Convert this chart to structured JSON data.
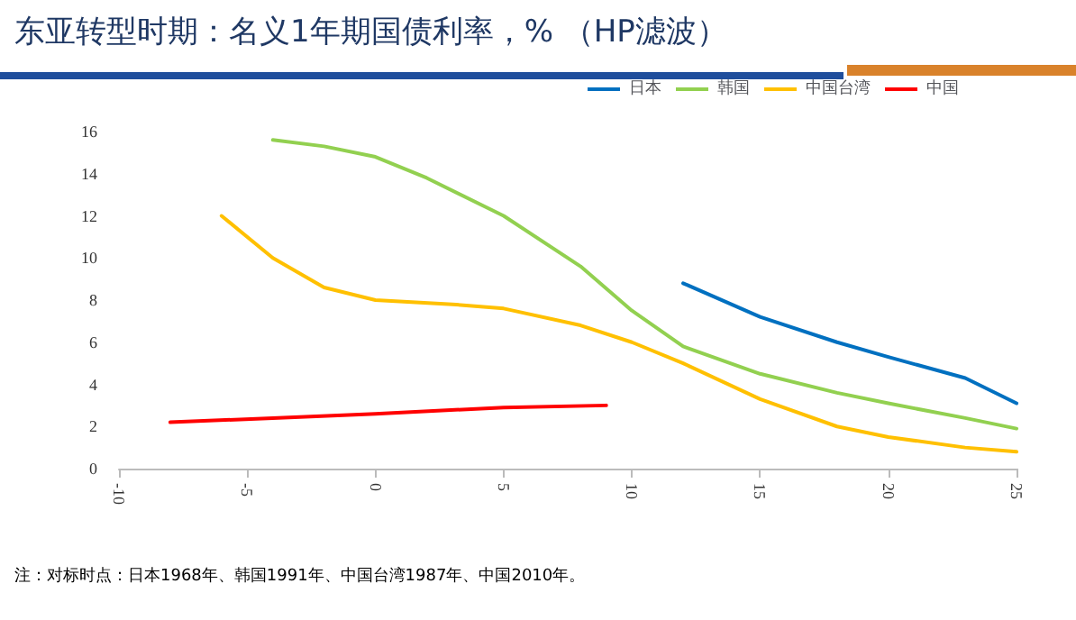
{
  "chart_data": {
    "type": "line",
    "title": "东亚转型时期：名义1年期国债利率，% （HP滤波）",
    "xlim": [
      -10,
      25
    ],
    "xticks": [
      -10,
      -5,
      0,
      5,
      10,
      15,
      20,
      25
    ],
    "ylim": [
      0,
      16
    ],
    "yticks": [
      0,
      2,
      4,
      6,
      8,
      10,
      12,
      14,
      16
    ],
    "grid": false,
    "legend": "top",
    "marker": "none",
    "line_style": "solid",
    "annotations": [
      "注：对标时点：日本1968年、韩国1991年、中国台湾1987年、中国2010年。"
    ],
    "series": [
      {
        "name": "日本",
        "color": "#0070c0",
        "x": [
          12,
          15,
          18,
          20,
          23,
          25
        ],
        "values": [
          8.8,
          7.2,
          6.0,
          5.3,
          4.3,
          3.1
        ]
      },
      {
        "name": "韩国",
        "color": "#92d050",
        "x": [
          -4,
          -2,
          0,
          2,
          5,
          8,
          10,
          12,
          15,
          18,
          20,
          23,
          25
        ],
        "values": [
          15.6,
          15.3,
          14.8,
          13.8,
          12.0,
          9.6,
          7.5,
          5.8,
          4.5,
          3.6,
          3.1,
          2.4,
          1.9
        ]
      },
      {
        "name": "中国台湾",
        "color": "#ffc000",
        "x": [
          -6,
          -4,
          -2,
          0,
          3,
          5,
          8,
          10,
          12,
          15,
          18,
          20,
          23,
          25
        ],
        "values": [
          12,
          10,
          8.6,
          8,
          7.8,
          7.6,
          6.8,
          6.0,
          5.0,
          3.3,
          2.0,
          1.5,
          1.0,
          0.8
        ]
      },
      {
        "name": "中国",
        "color": "#ff0000",
        "x": [
          -8,
          -4,
          0,
          5,
          9
        ],
        "values": [
          2.2,
          2.4,
          2.6,
          2.9,
          3.0
        ]
      }
    ]
  }
}
